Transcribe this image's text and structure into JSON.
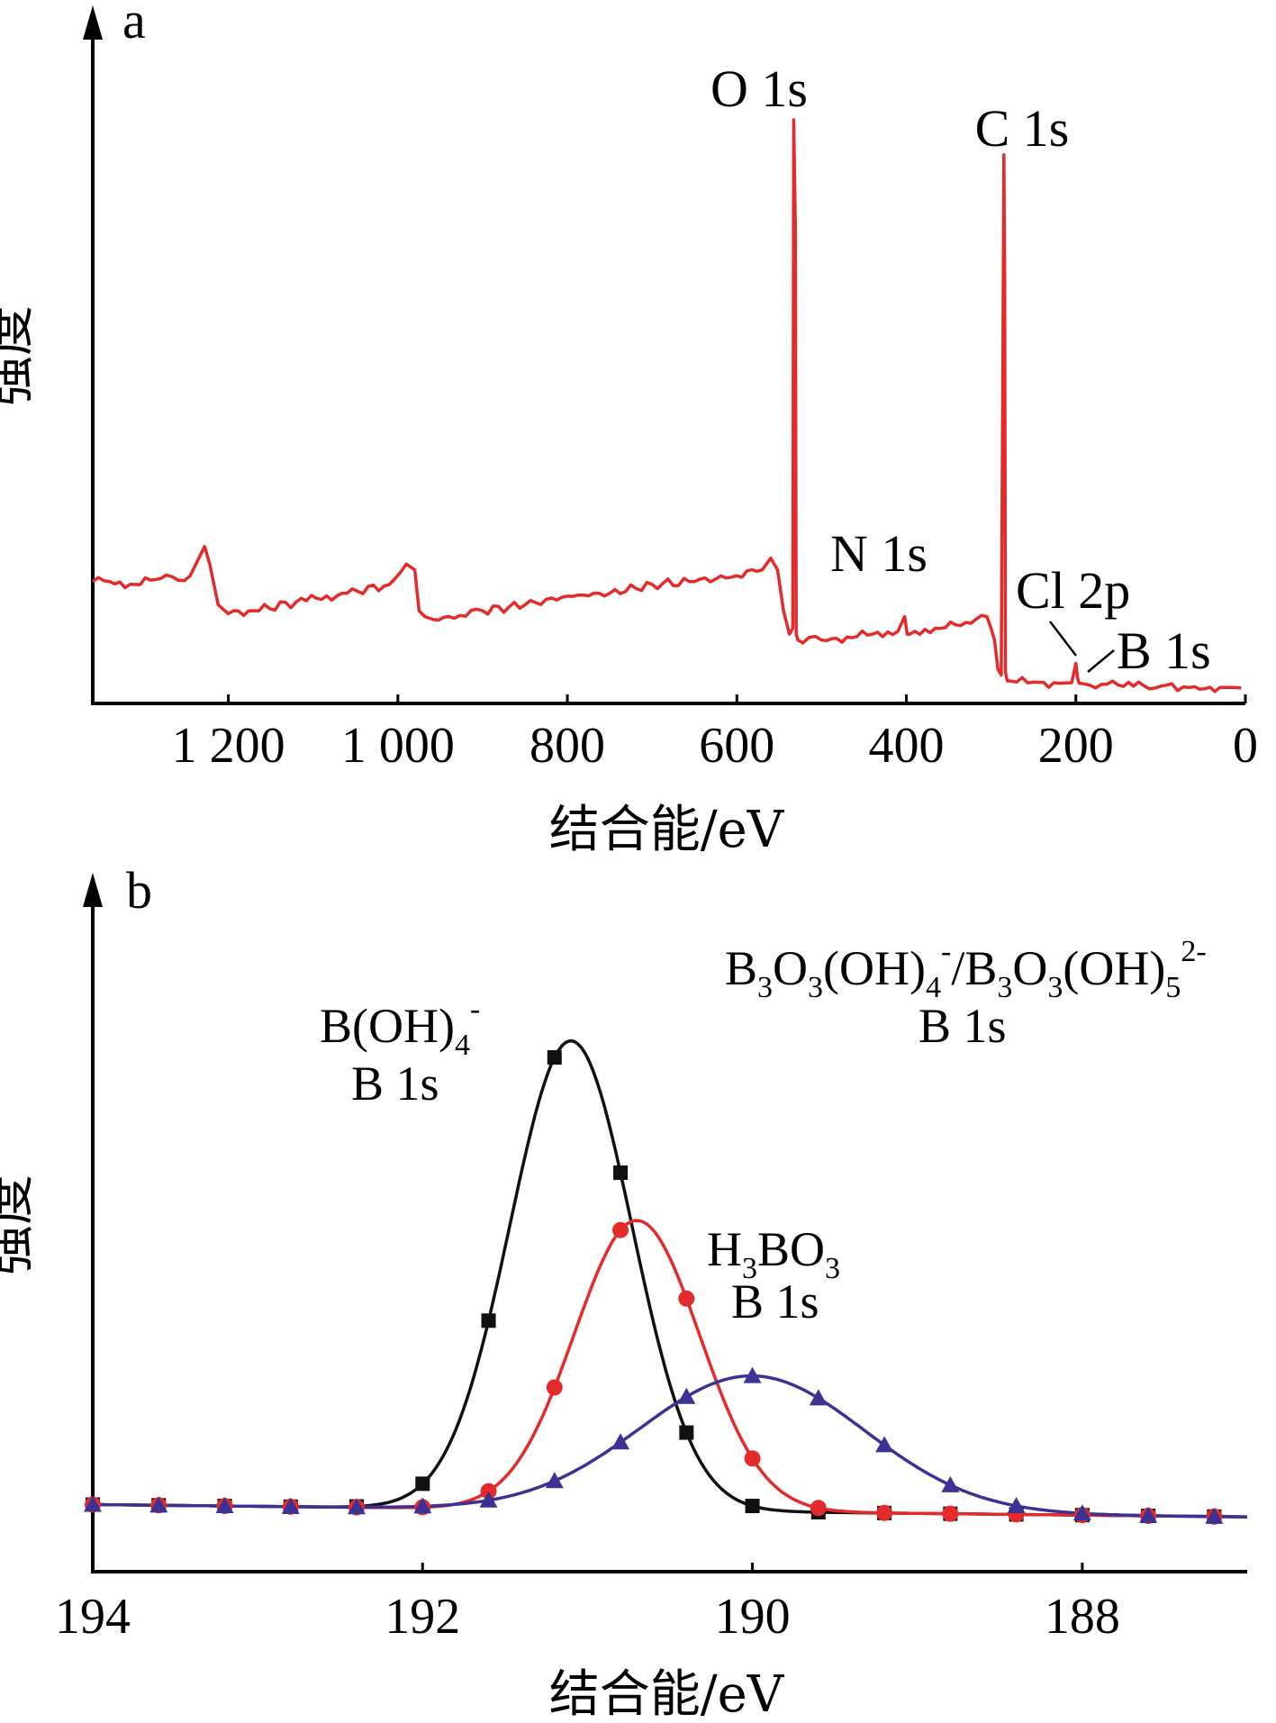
{
  "chart_data": [
    {
      "panel": "a",
      "type": "line",
      "xlabel": "结合能/eV",
      "ylabel": "强度",
      "xlim": [
        1360,
        0
      ],
      "ylim": [
        0,
        100
      ],
      "xticks": [
        1200,
        1000,
        800,
        600,
        400,
        200,
        0
      ],
      "xtick_labels": [
        "1 200",
        "1 000",
        "800",
        "600",
        "400",
        "200",
        "0"
      ],
      "color": "#e32b2b",
      "series": [
        {
          "x": [
            1360,
            1340,
            1310,
            1280,
            1245,
            1228,
            1222,
            1212,
            1200,
            1170,
            1120,
            1060,
            1010,
            990,
            980,
            975,
            968,
            958,
            940,
            900,
            850,
            800,
            750,
            700,
            650,
            600,
            570,
            560,
            552,
            545,
            538,
            534,
            533,
            531,
            530,
            528,
            522,
            500,
            470,
            440,
            410,
            402,
            399,
            396,
            390,
            360,
            330,
            305,
            300,
            296,
            292,
            288,
            286,
            285,
            284,
            283,
            281,
            278,
            270,
            250,
            220,
            205,
            200,
            198,
            196,
            190,
            170,
            150,
            120,
            100,
            60,
            30,
            15,
            5
          ],
          "y": [
            19,
            19,
            18.5,
            19.5,
            20,
            25,
            22,
            15,
            13.5,
            14,
            15.5,
            17,
            18.5,
            22,
            21,
            14,
            13,
            12.5,
            13,
            14,
            15,
            16.5,
            17,
            18.5,
            19,
            20,
            21,
            23,
            21,
            14,
            10,
            11,
            98,
            80,
            10,
            9,
            8.5,
            9,
            9.5,
            10,
            10.5,
            13,
            10,
            10,
            10.5,
            11,
            12,
            13,
            11,
            9,
            4,
            3,
            60,
            92,
            70,
            3.5,
            2,
            2,
            1.8,
            1.8,
            1.6,
            1.7,
            5,
            2.5,
            1.6,
            1.5,
            1.4,
            1.3,
            1.2,
            1.1,
            1,
            0.9,
            0.9,
            0.8
          ]
        }
      ],
      "annotations": [
        {
          "text": "O 1s",
          "x": 532
        },
        {
          "text": "C 1s",
          "x": 285
        },
        {
          "text": "N 1s",
          "x": 400
        },
        {
          "text": "Cl 2p",
          "x": 200
        },
        {
          "text": "B 1s",
          "x": 190
        }
      ]
    },
    {
      "panel": "b",
      "type": "line",
      "xlabel": "结合能/eV",
      "ylabel": "强度",
      "xlim": [
        194,
        187
      ],
      "ylim": [
        0,
        100
      ],
      "xticks": [
        194,
        192,
        190,
        188
      ],
      "xtick_labels": [
        "194",
        "192",
        "190",
        "188"
      ],
      "series": [
        {
          "label_main": "B(OH)",
          "label_sub": "4",
          "label_sup": "-",
          "label_line2": "B 1s",
          "color": "#111111",
          "marker": "square",
          "center": 191.1,
          "amplitude": 76,
          "sigma": 0.37,
          "baseline_left": 6.5,
          "baseline_right": 4.5,
          "marker_x": [
            194,
            193.6,
            193.2,
            192.8,
            192.4,
            192.0,
            191.6,
            191.2,
            190.8,
            190.4,
            190.0,
            189.6,
            189.2,
            188.8,
            188.4,
            188.0,
            187.6,
            187.2
          ]
        },
        {
          "label_main": "H",
          "label_sub": "3",
          "label_main2": "BO",
          "label_sub2": "3",
          "label_line2": "B 1s",
          "color": "#e32b2b",
          "marker": "circle",
          "center": 190.7,
          "amplitude": 47,
          "sigma": 0.38,
          "baseline_left": 6.5,
          "baseline_right": 4.5,
          "marker_x": [
            194,
            193.6,
            193.2,
            192.8,
            192.4,
            192.0,
            191.6,
            191.2,
            190.8,
            190.4,
            190.0,
            189.6,
            189.2,
            188.8,
            188.4,
            188.0,
            187.6,
            187.2
          ]
        },
        {
          "label_line1": "B₃O₃(OH)₄⁻/B₃O₃(OH)₅²⁻",
          "label_line2": "B 1s",
          "color": "#3b3294",
          "marker": "triangle",
          "center": 190.0,
          "amplitude": 22,
          "sigma": 0.68,
          "baseline_left": 6.5,
          "baseline_right": 4.5,
          "marker_x": [
            194,
            193.6,
            193.2,
            192.8,
            192.4,
            192.0,
            191.6,
            191.2,
            190.8,
            190.4,
            190.0,
            189.6,
            189.2,
            188.8,
            188.4,
            188.0,
            187.6,
            187.2
          ]
        }
      ]
    }
  ],
  "panels": {
    "a": {
      "letter": "a",
      "ylabel": "强度",
      "xlabel": "结合能/eV"
    },
    "b": {
      "letter": "b",
      "ylabel": "强度",
      "xlabel": "结合能/eV"
    }
  },
  "labels_b": {
    "boh4_main": "B(OH)",
    "boh4_sub": "4",
    "boh4_sup": "-",
    "boh4_line2": "B 1s",
    "h3bo3_H": "H",
    "h3bo3_sub1": "3",
    "h3bo3_BO": "BO",
    "h3bo3_sub2": "3",
    "h3bo3_line2": "B 1s",
    "poly_line1_a": "B",
    "poly_line1_b": "3",
    "poly_line1_c": "O",
    "poly_line1_d": "3",
    "poly_line1_e": "(OH)",
    "poly_line1_f": "4",
    "poly_line1_g": "-",
    "poly_line1_h": "/B",
    "poly_line1_i": "3",
    "poly_line1_j": "O",
    "poly_line1_k": "3",
    "poly_line1_l": "(OH)",
    "poly_line1_m": "5",
    "poly_line1_n": "2-",
    "poly_line2": "B 1s"
  }
}
